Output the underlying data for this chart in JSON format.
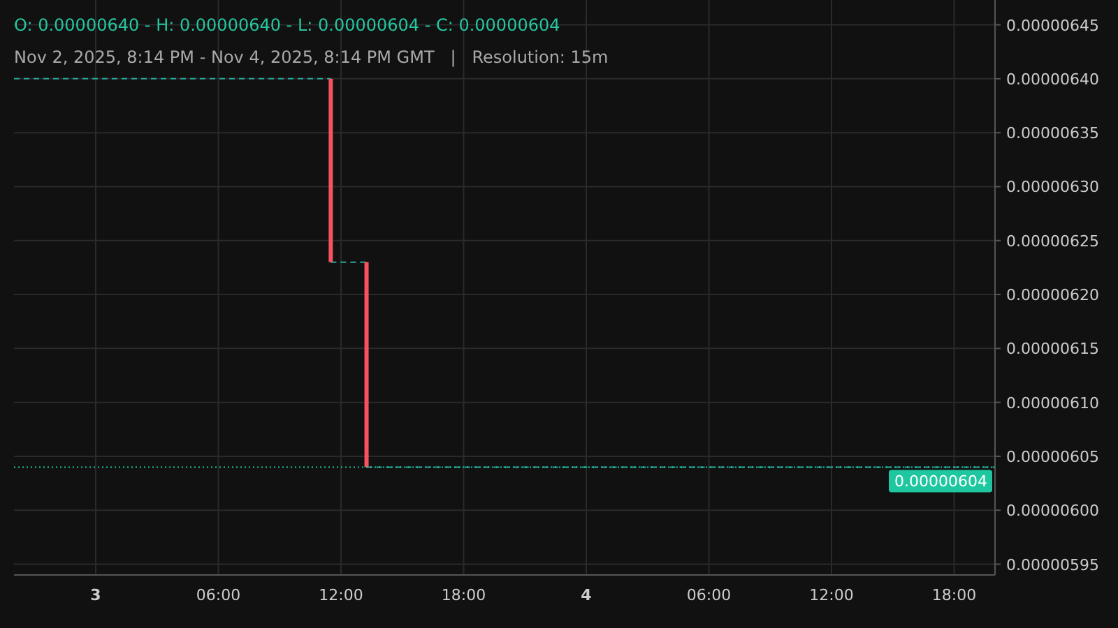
{
  "chart_data": {
    "type": "candlestick",
    "title": "O: 0.00000640 - H: 0.00000640 - L: 0.00000604 - C: 0.00000604",
    "subtitle": "Nov 2, 2025, 8:14 PM - Nov 4, 2025, 8:14 PM GMT   |   Resolution: 15m",
    "x": [
      "2025-11-03T11:30",
      "2025-11-03T13:15"
    ],
    "ohlc": [
      [
        6.4e-06,
        6.4e-06,
        6.23e-06,
        6.23e-06
      ],
      [
        6.23e-06,
        6.23e-06,
        6.04e-06,
        6.04e-06
      ]
    ],
    "colors": [
      "#f7525f",
      "#f7525f"
    ],
    "series": [
      {
        "type": "step",
        "color": "#26a69a",
        "line_style": "dashed",
        "x": [
          "2025-11-02T20:00",
          "2025-11-03T11:30",
          "2025-11-03T13:15",
          "2025-11-04T20:00"
        ],
        "values": [
          6.4e-06,
          6.23e-06,
          6.04e-06,
          6.04e-06
        ]
      }
    ],
    "xlim": [
      "2025-11-02T20:00",
      "2025-11-04T20:00"
    ],
    "xticks": [
      {
        "value": "2025-11-03T00:00",
        "label": "3"
      },
      {
        "value": "2025-11-03T06:00",
        "label": "06:00"
      },
      {
        "value": "2025-11-03T12:00",
        "label": "12:00"
      },
      {
        "value": "2025-11-03T18:00",
        "label": "18:00"
      },
      {
        "value": "2025-11-04T00:00",
        "label": "4"
      },
      {
        "value": "2025-11-04T06:00",
        "label": "06:00"
      },
      {
        "value": "2025-11-04T12:00",
        "label": "12:00"
      },
      {
        "value": "2025-11-04T18:00",
        "label": "18:00"
      }
    ],
    "ylim": [
      5.94e-06,
      6.473e-06
    ],
    "yticks": [
      {
        "value": 5.95e-06,
        "label": "0.00000595"
      },
      {
        "value": 6e-06,
        "label": "0.00000600"
      },
      {
        "value": 6.05e-06,
        "label": "0.00000605"
      },
      {
        "value": 6.1e-06,
        "label": "0.00000610"
      },
      {
        "value": 6.15e-06,
        "label": "0.00000615"
      },
      {
        "value": 6.2e-06,
        "label": "0.00000620"
      },
      {
        "value": 6.25e-06,
        "label": "0.00000625"
      },
      {
        "value": 6.3e-06,
        "label": "0.00000630"
      },
      {
        "value": 6.35e-06,
        "label": "0.00000635"
      },
      {
        "value": 6.4e-06,
        "label": "0.00000640"
      },
      {
        "value": 6.45e-06,
        "label": "0.00000645"
      }
    ],
    "ref_lines": [
      {
        "axis": "y",
        "value": 6.04e-06,
        "label": "0.00000604",
        "color": "#1fc7a0",
        "line_style": "dotted"
      }
    ],
    "grid": true
  }
}
